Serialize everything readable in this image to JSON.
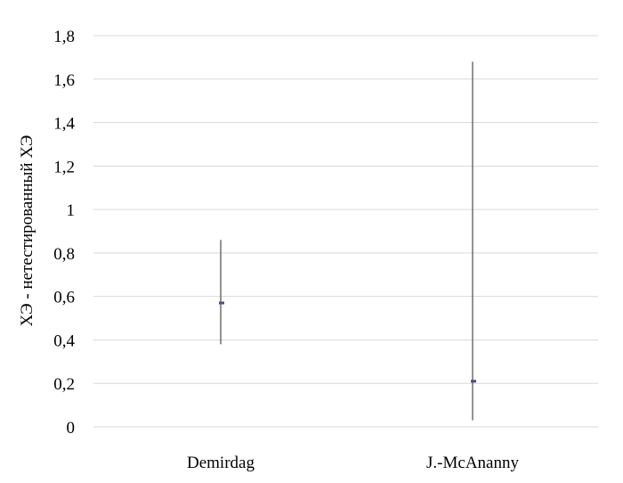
{
  "chart_data": {
    "type": "error-bar",
    "title": "",
    "xlabel": "",
    "ylabel": "ХЭ - нетестированный ХЭ",
    "ylim": [
      0,
      1.8
    ],
    "yticks": [
      {
        "value": 0,
        "label": "0"
      },
      {
        "value": 0.2,
        "label": "0,2"
      },
      {
        "value": 0.4,
        "label": "0,4"
      },
      {
        "value": 0.6,
        "label": "0,6"
      },
      {
        "value": 0.8,
        "label": "0,8"
      },
      {
        "value": 1,
        "label": "1"
      },
      {
        "value": 1.2,
        "label": "1,2"
      },
      {
        "value": 1.4,
        "label": "1,4"
      },
      {
        "value": 1.6,
        "label": "1,6"
      },
      {
        "value": 1.8,
        "label": "1,8"
      }
    ],
    "grid": true,
    "categories": [
      "Demirdag",
      "J.-McAnanny"
    ],
    "points": [
      {
        "category": "Demirdag",
        "value": 0.57,
        "low": 0.38,
        "high": 0.86
      },
      {
        "category": "J.-McAnanny",
        "value": 0.21,
        "low": 0.03,
        "high": 1.68
      }
    ],
    "colors": {
      "grid": "#d9d9d9",
      "whisker": "#595959",
      "marker": "#4b4b8f",
      "text": "#000000"
    }
  }
}
